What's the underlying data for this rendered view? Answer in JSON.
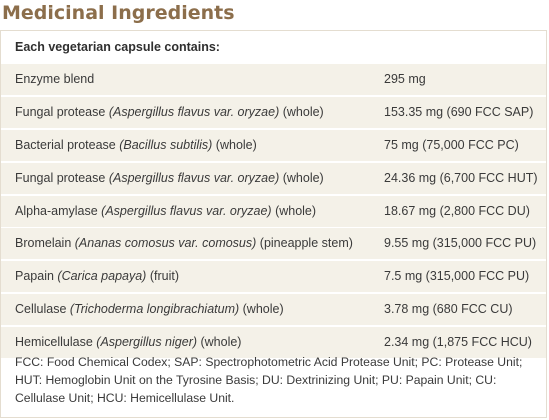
{
  "title": "Medicinal Ingredients",
  "intro": "Each vegetarian capsule contains:",
  "rows": [
    {
      "name": "Enzyme blend",
      "latin": "",
      "suffix": "",
      "amount": "295 mg"
    },
    {
      "name": "Fungal protease ",
      "latin": "(Aspergillus flavus var. oryzae)",
      "suffix": " (whole)",
      "amount": "153.35 mg (690 FCC SAP)"
    },
    {
      "name": "Bacterial protease ",
      "latin": "(Bacillus subtilis)",
      "suffix": " (whole)",
      "amount": "75 mg (75,000 FCC PC)"
    },
    {
      "name": "Fungal protease ",
      "latin": "(Aspergillus flavus var. oryzae)",
      "suffix": " (whole)",
      "amount": "24.36 mg (6,700 FCC HUT)"
    },
    {
      "name": "Alpha-amylase ",
      "latin": "(Aspergillus flavus var. oryzae)",
      "suffix": " (whole)",
      "amount": "18.67 mg (2,800 FCC DU)"
    },
    {
      "name": "Bromelain ",
      "latin": "(Ananas comosus var. comosus)",
      "suffix": " (pineapple stem)",
      "amount": "9.55 mg (315,000 FCC PU)"
    },
    {
      "name": "Papain ",
      "latin": "(Carica papaya)",
      "suffix": " (fruit)",
      "amount": "7.5 mg (315,000 FCC PU)"
    },
    {
      "name": "Cellulase ",
      "latin": "(Trichoderma longibrachiatum)",
      "suffix": " (whole)",
      "amount": "3.78 mg (680 FCC CU)"
    },
    {
      "name": "Hemicellulase ",
      "latin": "(Aspergillus niger)",
      "suffix": " (whole)",
      "amount": "2.34 mg (1,875 FCC HCU)"
    }
  ],
  "footnote": "FCC: Food Chemical Codex; SAP: Spectrophotometric Acid Protease Unit; PC: Protease Unit; HUT: Hemoglobin Unit on the Tyrosine Basis; DU: Dextrinizing Unit; PU: Papain Unit; CU: Cellulase Unit; HCU: Hemicellulase Unit."
}
